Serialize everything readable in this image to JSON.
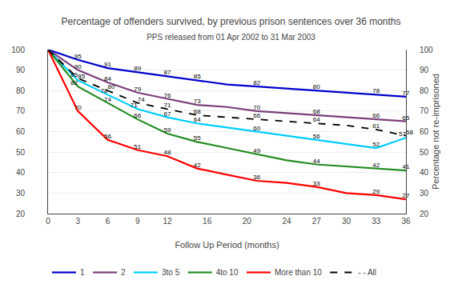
{
  "chart_data": {
    "type": "line",
    "title": "Percentage of offenders survived, by previous prison sentences over 36 months",
    "subtitle": "PPS released from 01 Apr 2002 to 31 Mar 2003",
    "xlabel": "Follow Up Period (months)",
    "y2label": "Percentage not re-imprisoned",
    "x": [
      0,
      3,
      6,
      9,
      12,
      15,
      18,
      21,
      24,
      27,
      30,
      33,
      36
    ],
    "xlim": [
      0,
      36
    ],
    "xticks": [
      0,
      3,
      6,
      9,
      12,
      16,
      20,
      24,
      27,
      30,
      33,
      36
    ],
    "ylim": [
      20,
      100
    ],
    "yticks": [
      20,
      30,
      40,
      50,
      60,
      70,
      80,
      90,
      100
    ],
    "y2lim": [
      20,
      100
    ],
    "y2ticks": [
      20,
      30,
      40,
      50,
      60,
      70,
      80,
      90,
      100
    ],
    "grid": "y",
    "legend": "lower left",
    "data_labels": true,
    "series": [
      {
        "name": "1",
        "color": "#0000cc",
        "line_style": "solid",
        "values": [
          100,
          95,
          91,
          89,
          87,
          85,
          83,
          82,
          81,
          80,
          79,
          78,
          77
        ],
        "value_labels": [
          null,
          "95",
          "91",
          "89",
          "87",
          "85",
          null,
          "82",
          null,
          "80",
          null,
          "78",
          "77"
        ]
      },
      {
        "name": "2",
        "color": "#7b3f7b",
        "line_style": "solid",
        "values": [
          100,
          90,
          84,
          79,
          76,
          73,
          72,
          70,
          69,
          68,
          67,
          66,
          65
        ],
        "value_labels": [
          null,
          "90",
          "84",
          "79",
          "76",
          "73",
          null,
          "70",
          null,
          "68",
          null,
          "66",
          "65"
        ]
      },
      {
        "name": "3to 5",
        "color": "#00ccff",
        "line_style": "solid",
        "values": [
          100,
          85,
          78,
          71,
          67,
          64,
          62,
          60,
          58,
          56,
          54,
          52,
          57
        ],
        "value_labels": [
          null,
          "85",
          "78",
          "71",
          "67",
          "64",
          null,
          "60",
          null,
          "56",
          null,
          "52",
          "57"
        ]
      },
      {
        "name": "4to 10",
        "color": "#228b22",
        "line_style": "solid",
        "values": [
          100,
          82,
          74,
          66,
          59,
          55,
          52,
          49,
          46,
          44,
          43,
          42,
          41
        ],
        "value_labels": [
          null,
          "82",
          "74",
          "66",
          "59",
          "55",
          null,
          "49",
          null,
          "44",
          null,
          "42",
          "41"
        ]
      },
      {
        "name": "More than 10",
        "color": "#ff0000",
        "line_style": "solid",
        "values": [
          100,
          70,
          56,
          51,
          48,
          42,
          39,
          36,
          35,
          33,
          30,
          29,
          27
        ],
        "value_labels": [
          null,
          "70",
          "56",
          "51",
          "48",
          "42",
          null,
          "36",
          null,
          "33",
          null,
          "29",
          "27"
        ]
      },
      {
        "name": "- - All",
        "color": "#000000",
        "line_style": "dashed",
        "values": [
          100,
          86,
          80,
          74,
          71,
          68,
          67,
          66,
          65,
          64,
          63,
          61,
          58
        ],
        "value_labels": [
          null,
          "86",
          "80",
          "74",
          "71",
          "68",
          null,
          "66",
          null,
          "64",
          null,
          "61",
          "58"
        ]
      }
    ],
    "annotations": [
      {
        "x": -0.5,
        "y": 100.5,
        "text": "100"
      }
    ]
  }
}
